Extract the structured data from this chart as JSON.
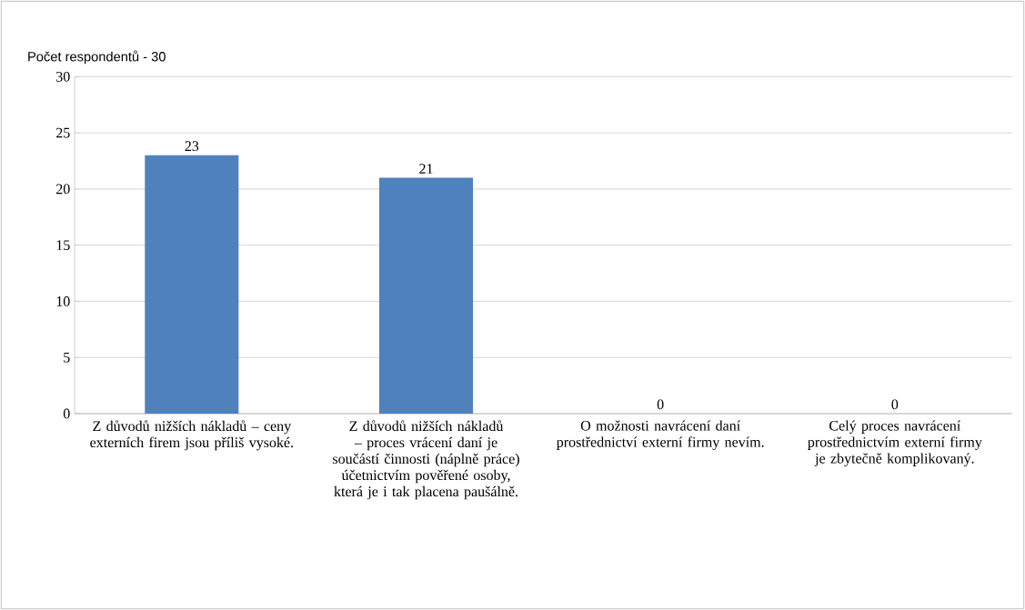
{
  "chart_data": {
    "type": "bar",
    "ylabel": "Počet respondentů - 30",
    "categories": [
      "Z důvodů nižších nákladů – ceny externích firem jsou příliš vysoké.",
      "Z důvodů nižších nákladů – proces vrácení daní je součástí činnosti (náplně práce) účetnictvím pověřené osoby, která je i tak placena paušálně.",
      "O možnosti navrácení daní prostřednictví externí firmy nevím.",
      "Celý proces navrácení prostřednictvím externí firmy je zbytečně komplikovaný."
    ],
    "values": [
      23,
      21,
      0,
      0
    ],
    "color": "#4f81bd",
    "ylim": [
      0,
      30
    ],
    "yticks": [
      0,
      5,
      10,
      15,
      20,
      25,
      30
    ],
    "grid": "y",
    "data_labels": true
  }
}
